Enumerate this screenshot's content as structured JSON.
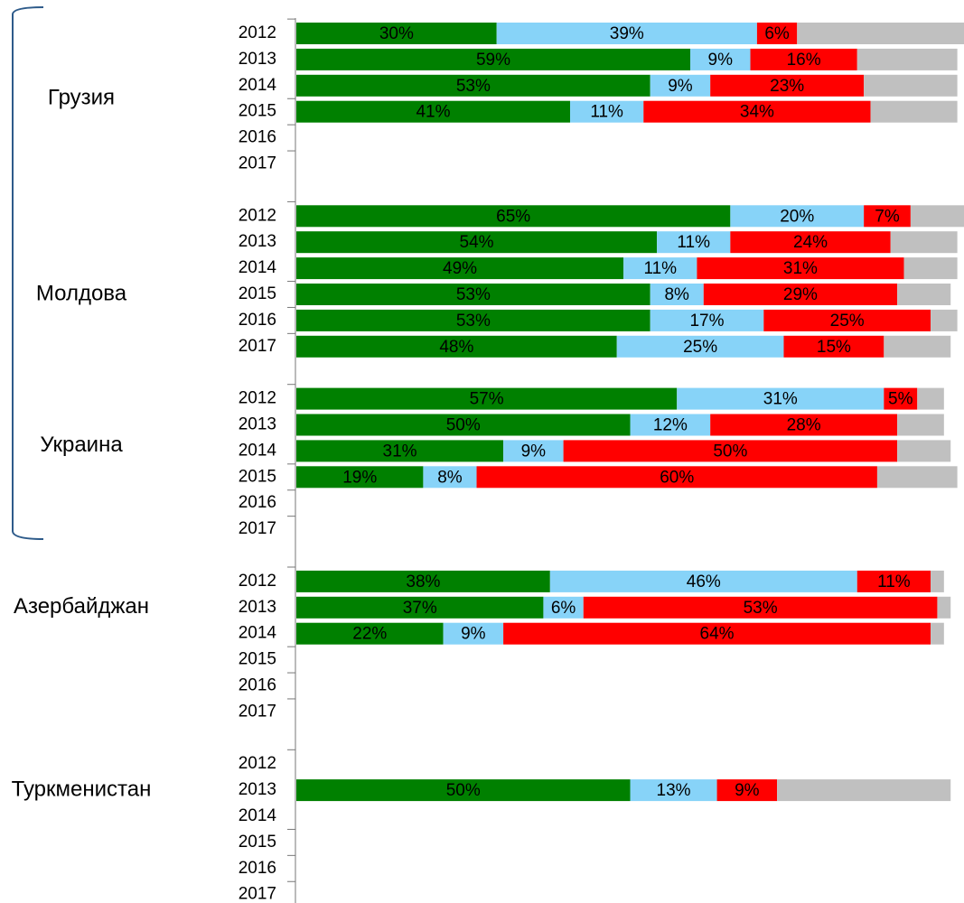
{
  "chart_data": {
    "type": "bar",
    "orientation": "horizontal",
    "stacked": true,
    "xlim": [
      0,
      100
    ],
    "series_colors": [
      "#008000",
      "#87d3f8",
      "#ff0000",
      "#c0c0c0"
    ],
    "label_colors": [
      "#ffffff",
      "#000000",
      "#ffffff",
      "#ffffff"
    ],
    "groups": [
      {
        "name": "Грузия",
        "categories": [
          "2012",
          "2013",
          "2014",
          "2015",
          "2016",
          "2017"
        ],
        "series": [
          {
            "values": [
              30,
              59,
              53,
              41,
              null,
              null
            ],
            "value_labels": [
              "30%",
              "59%",
              "53%",
              "41%",
              null,
              null
            ]
          },
          {
            "values": [
              39,
              9,
              9,
              11,
              null,
              null
            ],
            "value_labels": [
              "39%",
              "9%",
              "9%",
              "11%",
              null,
              null
            ]
          },
          {
            "values": [
              6,
              16,
              23,
              34,
              null,
              null
            ],
            "value_labels": [
              "6%",
              "16%",
              "23%",
              "34%",
              null,
              null
            ]
          },
          {
            "values": [
              25,
              15,
              14,
              13,
              null,
              null
            ]
          }
        ]
      },
      {
        "name": "Молдова",
        "categories": [
          "2012",
          "2013",
          "2014",
          "2015",
          "2016",
          "2017"
        ],
        "series": [
          {
            "values": [
              65,
              54,
              49,
              53,
              53,
              48
            ],
            "value_labels": [
              "65%",
              "54%",
              "49%",
              "53%",
              "53%",
              "48%"
            ]
          },
          {
            "values": [
              20,
              11,
              11,
              8,
              17,
              25
            ],
            "value_labels": [
              "20%",
              "11%",
              "11%",
              "8%",
              "17%",
              "25%"
            ]
          },
          {
            "values": [
              7,
              24,
              31,
              29,
              25,
              15
            ],
            "value_labels": [
              "7%",
              "24%",
              "31%",
              "29%",
              "25%",
              "15%"
            ]
          },
          {
            "values": [
              8,
              10,
              8,
              8,
              4,
              10
            ]
          }
        ]
      },
      {
        "name": "Украина",
        "categories": [
          "2012",
          "2013",
          "2014",
          "2015",
          "2016",
          "2017"
        ],
        "series": [
          {
            "values": [
              57,
              50,
              31,
              19,
              null,
              null
            ],
            "value_labels": [
              "57%",
              "50%",
              "31%",
              "19%",
              null,
              null
            ]
          },
          {
            "values": [
              31,
              12,
              9,
              8,
              null,
              null
            ],
            "value_labels": [
              "31%",
              "12%",
              "9%",
              "8%",
              null,
              null
            ]
          },
          {
            "values": [
              5,
              28,
              50,
              60,
              null,
              null
            ],
            "value_labels": [
              "5%",
              "28%",
              "50%",
              "60%",
              null,
              null
            ]
          },
          {
            "values": [
              4,
              7,
              8,
              12,
              null,
              null
            ]
          }
        ]
      },
      {
        "name": "Азербайджан",
        "categories": [
          "2012",
          "2013",
          "2014",
          "2015",
          "2016",
          "2017"
        ],
        "series": [
          {
            "values": [
              38,
              37,
              22,
              null,
              null,
              null
            ],
            "value_labels": [
              "38%",
              "37%",
              "22%",
              null,
              null,
              null
            ]
          },
          {
            "values": [
              46,
              6,
              9,
              null,
              null,
              null
            ],
            "value_labels": [
              "46%",
              "6%",
              "9%",
              null,
              null,
              null
            ]
          },
          {
            "values": [
              11,
              53,
              64,
              null,
              null,
              null
            ],
            "value_labels": [
              "11%",
              "53%",
              "64%",
              null,
              null,
              null
            ]
          },
          {
            "values": [
              2,
              2,
              2,
              null,
              null,
              null
            ]
          }
        ]
      },
      {
        "name": "Туркменистан",
        "categories": [
          "2012",
          "2013",
          "2014",
          "2015",
          "2016",
          "2017"
        ],
        "series": [
          {
            "values": [
              null,
              50,
              null,
              null,
              null,
              null
            ],
            "value_labels": [
              null,
              "50%",
              null,
              null,
              null,
              null
            ]
          },
          {
            "values": [
              null,
              13,
              null,
              null,
              null,
              null
            ],
            "value_labels": [
              null,
              "13%",
              null,
              null,
              null,
              null
            ]
          },
          {
            "values": [
              null,
              9,
              null,
              null,
              null,
              null
            ],
            "value_labels": [
              null,
              "9%",
              null,
              null,
              null,
              null
            ]
          },
          {
            "values": [
              null,
              26,
              null,
              null,
              null,
              null
            ]
          }
        ]
      }
    ]
  }
}
